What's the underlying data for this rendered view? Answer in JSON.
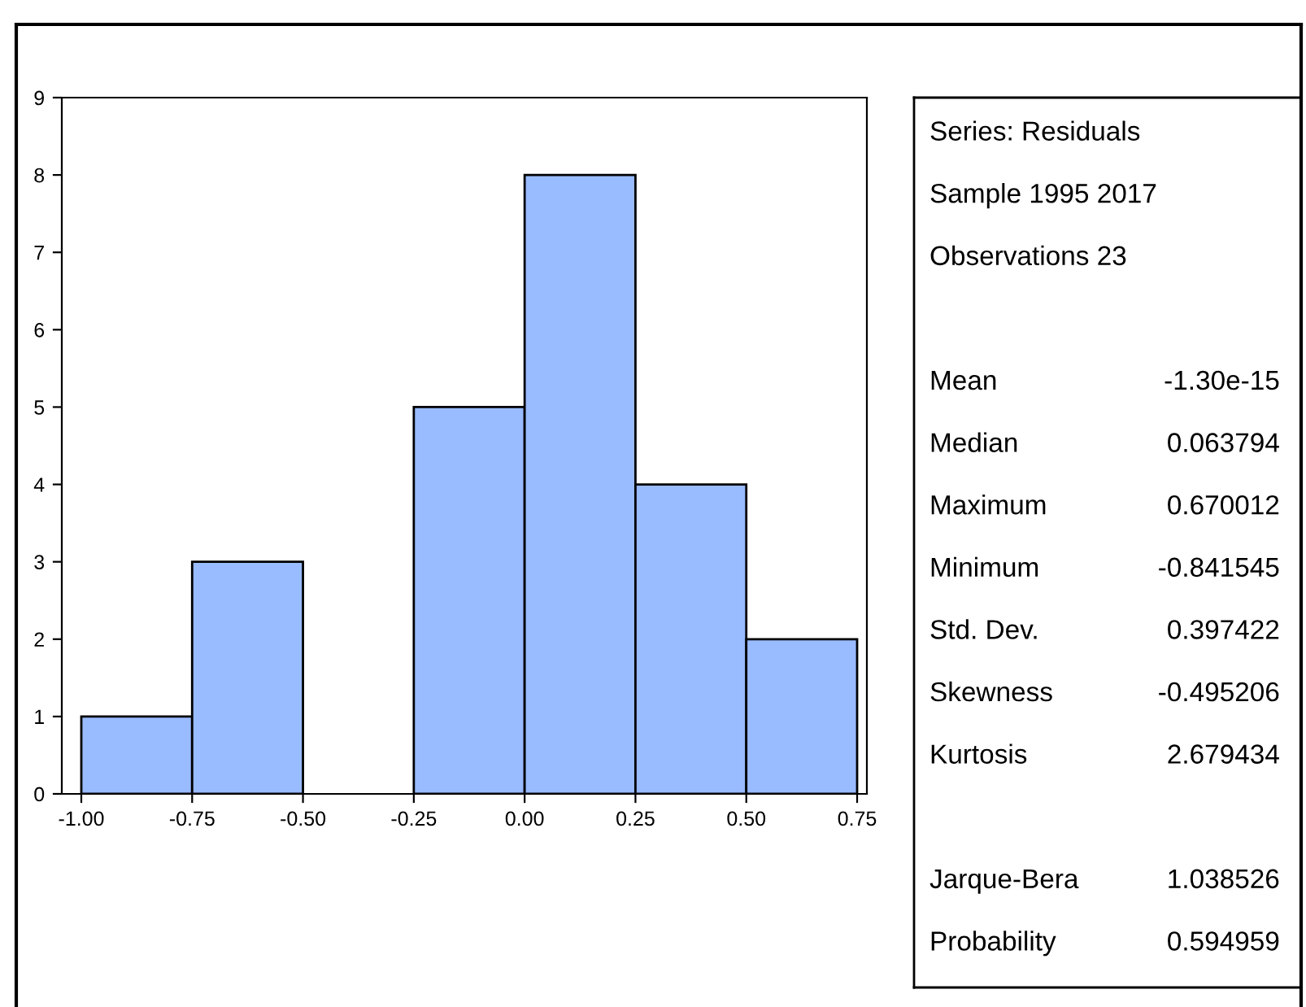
{
  "chart_data": [
    {
      "type": "histogram",
      "bins": [
        -1.0,
        -0.75,
        -0.5,
        -0.25,
        0.0,
        0.25,
        0.5,
        0.75
      ],
      "values": [
        1,
        3,
        0,
        5,
        8,
        4,
        2
      ],
      "color": "#99bbff",
      "xlim": [
        -1.044,
        0.772
      ],
      "ylim": [
        0,
        9
      ],
      "xticks": [
        {
          "value": -1.0,
          "label": "-1.00"
        },
        {
          "value": -0.75,
          "label": "-0.75"
        },
        {
          "value": -0.5,
          "label": "-0.50"
        },
        {
          "value": -0.25,
          "label": "-0.25"
        },
        {
          "value": 0.0,
          "label": "0.00"
        },
        {
          "value": 0.25,
          "label": "0.25"
        },
        {
          "value": 0.5,
          "label": "0.50"
        },
        {
          "value": 0.75,
          "label": "0.75"
        }
      ],
      "yticks": [
        0,
        1,
        2,
        3,
        4,
        5,
        6,
        7,
        8,
        9
      ],
      "grid": false
    },
    {
      "type": "other",
      "annotations": [
        "Series: Residuals",
        "Sample 1995 2017",
        "Observations 23"
      ],
      "categories": [
        "Mean",
        "Median",
        "Maximum",
        "Minimum",
        "Std. Dev.",
        "Skewness",
        "Kurtosis",
        null,
        "Jarque-Bera",
        "Probability"
      ],
      "value_labels": [
        "-1.30e-15",
        "0.063794",
        "0.670012",
        "-0.841545",
        "0.397422",
        "-0.495206",
        "2.679434",
        null,
        "1.038526",
        "0.594959"
      ]
    }
  ]
}
